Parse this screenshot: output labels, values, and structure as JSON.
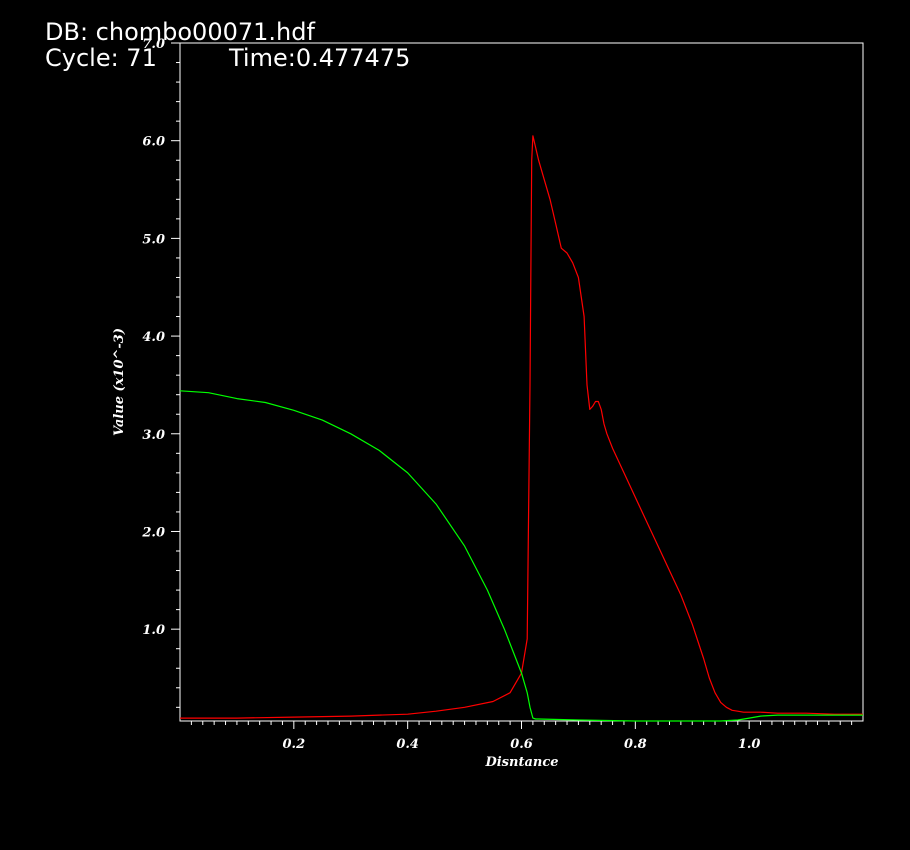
{
  "header": {
    "db_label": "DB: chombo00071.hdf",
    "cycle_label": "Cycle: 71",
    "time_label": "Time:0.477475"
  },
  "colors": {
    "background": "#000000",
    "frame": "#ffffff",
    "series_red": "#ff0000",
    "series_green": "#00ff00"
  },
  "chart_data": {
    "type": "line",
    "xlabel": "Disntance",
    "ylabel": "Value (x10^-3)",
    "xlim": [
      0.0,
      1.2
    ],
    "ylim": [
      0.06,
      7.0
    ],
    "x_ticks": [
      0.2,
      0.4,
      0.6,
      0.8,
      1.0
    ],
    "x_tick_labels": [
      "0.2",
      "0.4",
      "0.6",
      "0.8",
      "1.0"
    ],
    "y_ticks": [
      1.0,
      2.0,
      3.0,
      4.0,
      5.0,
      6.0,
      7.0
    ],
    "y_tick_labels": [
      "1.0",
      "2.0",
      "3.0",
      "4.0",
      "5.0",
      "6.0",
      "7.0"
    ],
    "grid": false,
    "legend": "none",
    "series": [
      {
        "color": "#ff0000",
        "x": [
          0.0,
          0.1,
          0.2,
          0.3,
          0.35,
          0.4,
          0.45,
          0.5,
          0.55,
          0.58,
          0.6,
          0.61,
          0.615,
          0.618,
          0.62,
          0.624,
          0.63,
          0.64,
          0.65,
          0.66,
          0.67,
          0.68,
          0.69,
          0.7,
          0.71,
          0.715,
          0.72,
          0.725,
          0.73,
          0.735,
          0.74,
          0.745,
          0.75,
          0.76,
          0.78,
          0.8,
          0.82,
          0.84,
          0.86,
          0.88,
          0.9,
          0.92,
          0.93,
          0.94,
          0.95,
          0.96,
          0.97,
          0.98,
          0.99,
          1.0,
          1.02,
          1.05,
          1.1,
          1.15,
          1.2
        ],
        "y": [
          0.09,
          0.09,
          0.1,
          0.11,
          0.12,
          0.13,
          0.16,
          0.2,
          0.26,
          0.35,
          0.55,
          0.9,
          3.5,
          5.8,
          6.05,
          5.95,
          5.8,
          5.6,
          5.4,
          5.15,
          4.9,
          4.85,
          4.75,
          4.6,
          4.2,
          3.5,
          3.25,
          3.28,
          3.33,
          3.33,
          3.25,
          3.1,
          3.0,
          2.85,
          2.6,
          2.35,
          2.1,
          1.85,
          1.6,
          1.35,
          1.05,
          0.7,
          0.5,
          0.35,
          0.25,
          0.2,
          0.17,
          0.16,
          0.15,
          0.15,
          0.15,
          0.14,
          0.14,
          0.13,
          0.13
        ]
      },
      {
        "color": "#00ff00",
        "x": [
          0.0,
          0.05,
          0.1,
          0.15,
          0.2,
          0.25,
          0.3,
          0.35,
          0.4,
          0.45,
          0.5,
          0.54,
          0.57,
          0.6,
          0.61,
          0.615,
          0.62,
          0.625,
          0.63,
          0.7,
          0.8,
          0.9,
          0.95,
          0.98,
          1.0,
          1.02,
          1.05,
          1.1,
          1.15,
          1.2
        ],
        "y": [
          3.44,
          3.42,
          3.36,
          3.32,
          3.24,
          3.14,
          3.0,
          2.83,
          2.6,
          2.28,
          1.85,
          1.4,
          1.0,
          0.55,
          0.35,
          0.2,
          0.09,
          0.08,
          0.08,
          0.07,
          0.06,
          0.06,
          0.06,
          0.07,
          0.09,
          0.11,
          0.12,
          0.12,
          0.12,
          0.12
        ]
      }
    ]
  }
}
